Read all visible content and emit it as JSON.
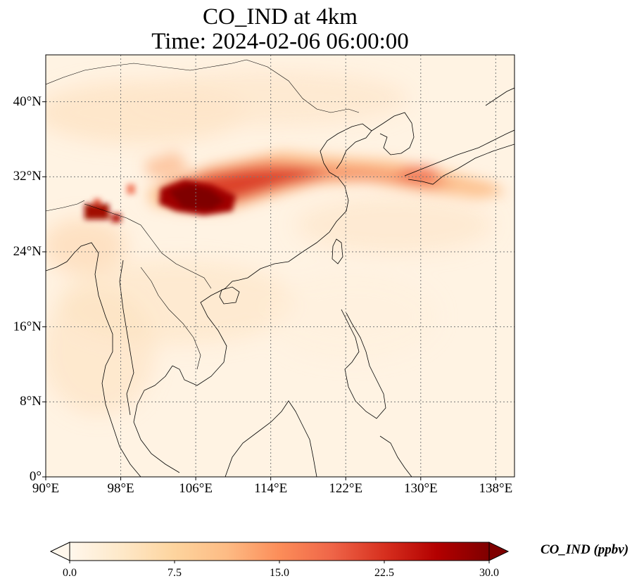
{
  "title": {
    "line1": "CO_IND at 4km",
    "line2": "Time: 2024-02-06 06:00:00"
  },
  "map": {
    "extent": {
      "lon_min": 90,
      "lon_max": 140,
      "lat_min": 0,
      "lat_max": 45
    },
    "gridlines": "dotted",
    "y_ticks": [
      {
        "lat": 40,
        "label": "40°N"
      },
      {
        "lat": 32,
        "label": "32°N"
      },
      {
        "lat": 24,
        "label": "24°N"
      },
      {
        "lat": 16,
        "label": "16°N"
      },
      {
        "lat": 8,
        "label": "8°N"
      },
      {
        "lat": 0,
        "label": "0°"
      }
    ],
    "x_ticks": [
      {
        "lon": 90,
        "label": "90°E"
      },
      {
        "lon": 98,
        "label": "98°E"
      },
      {
        "lon": 106,
        "label": "106°E"
      },
      {
        "lon": 114,
        "label": "114°E"
      },
      {
        "lon": 122,
        "label": "122°E"
      },
      {
        "lon": 130,
        "label": "130°E"
      },
      {
        "lon": 138,
        "label": "138°E"
      }
    ],
    "field": "CO_IND concentration plume from Sichuan Basin eastward across East China Sea to Japan; hotspot near Bangladesh/Myanmar border"
  },
  "colorbar": {
    "label": "CO_IND (ppbv)",
    "colormap": "OrRd",
    "vmin": 0,
    "vmax": 30,
    "extend": "both",
    "ticks": [
      "0.0",
      "7.5",
      "15.0",
      "22.5",
      "30.0"
    ],
    "colors": [
      "#fff7ec",
      "#fee8c8",
      "#fdd49e",
      "#fdbb84",
      "#fc8d59",
      "#ef6548",
      "#d7301f",
      "#b30000",
      "#7f0000"
    ]
  }
}
